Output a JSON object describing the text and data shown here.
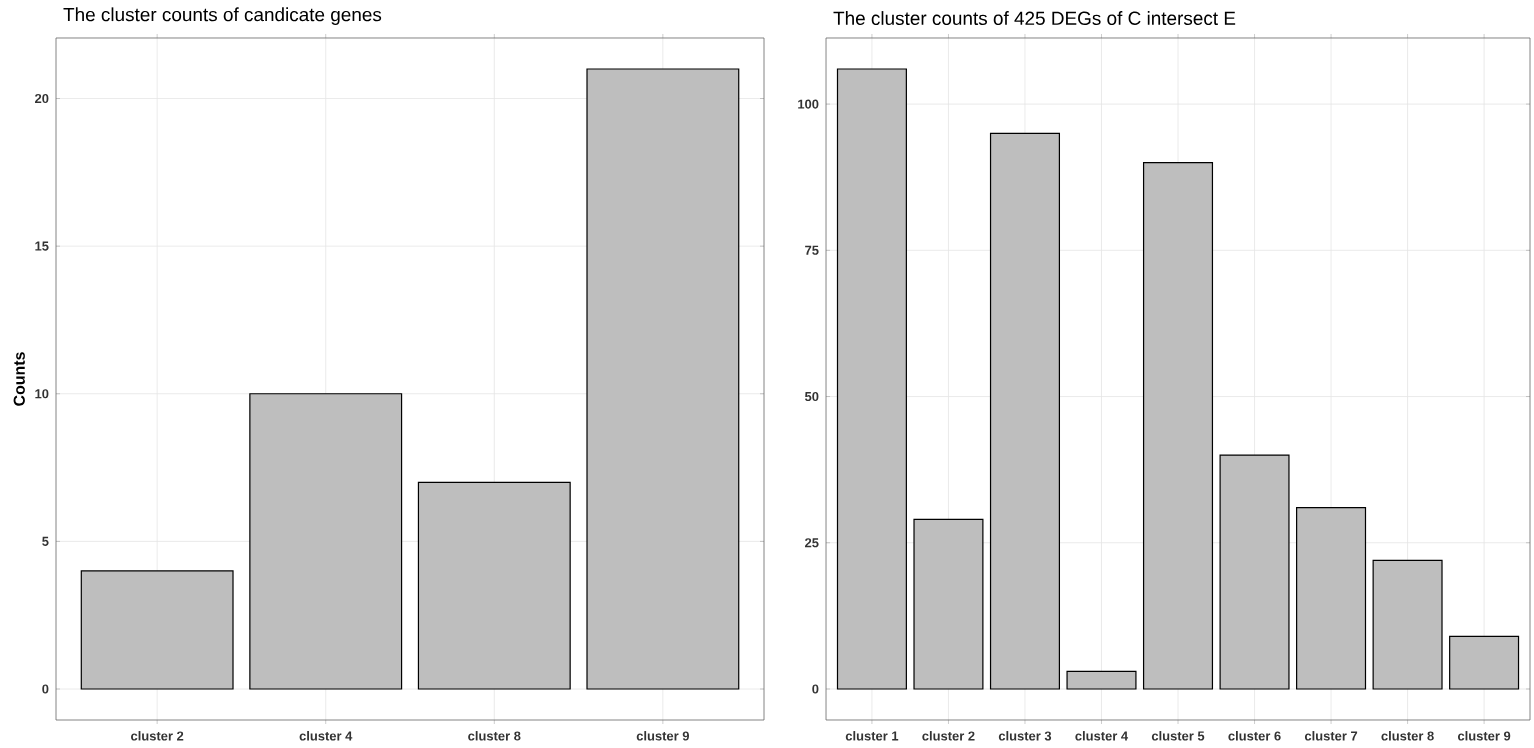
{
  "chart_data": [
    {
      "type": "bar",
      "title": "The cluster counts of candicate genes",
      "ylabel": "Counts",
      "categories": [
        "cluster 2",
        "cluster 4",
        "cluster 8",
        "cluster 9"
      ],
      "values": [
        4,
        10,
        7,
        21
      ],
      "color": "#bebebe",
      "ylim": [
        -1.05,
        22.05
      ],
      "yticks": [
        0,
        5,
        10,
        15,
        20
      ],
      "grid": true
    },
    {
      "type": "bar",
      "title": "The cluster counts of 425 DEGs of C intersect E",
      "categories": [
        "cluster 1",
        "cluster 2",
        "cluster 3",
        "cluster 4",
        "cluster 5",
        "cluster 6",
        "cluster 7",
        "cluster 8",
        "cluster 9"
      ],
      "values": [
        106,
        29,
        95,
        3,
        90,
        40,
        31,
        22,
        9
      ],
      "color": "#bebebe",
      "ylim": [
        -5.3,
        111.3
      ],
      "yticks": [
        0,
        25,
        50,
        75,
        100
      ],
      "grid": true
    }
  ]
}
